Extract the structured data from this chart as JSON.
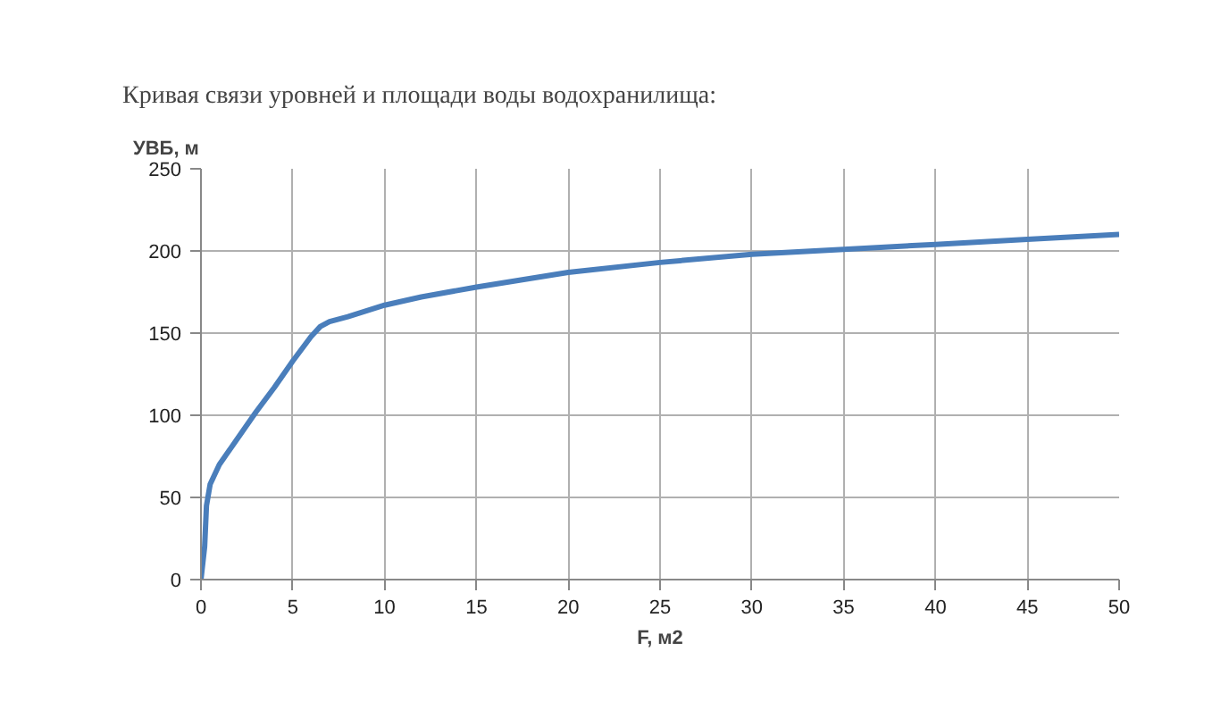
{
  "chart_data": {
    "type": "line",
    "title": "Кривая связи уровней и площади воды водохранилища:",
    "xlabel": "F, м2",
    "ylabel": "УВБ, м",
    "x": [
      0,
      0.2,
      0.3,
      0.5,
      1,
      2,
      3,
      4,
      5,
      6,
      6.5,
      7,
      8,
      10,
      12,
      15,
      20,
      25,
      30,
      35,
      40,
      45,
      50
    ],
    "series": [
      {
        "color": "#4a7ebb",
        "values": [
          0,
          20,
          45,
          58,
          70,
          86,
          102,
          117,
          133,
          148,
          154,
          157,
          160,
          167,
          172,
          178,
          187,
          193,
          198,
          201,
          204,
          207,
          210
        ]
      }
    ],
    "xlim": [
      0,
      50
    ],
    "xticks": [
      0,
      5,
      10,
      15,
      20,
      25,
      30,
      35,
      40,
      45,
      50
    ],
    "ylim": [
      0,
      250
    ],
    "yticks": [
      0,
      50,
      100,
      150,
      200,
      250
    ],
    "grid": true,
    "marker": "none",
    "line_style": "solid"
  }
}
